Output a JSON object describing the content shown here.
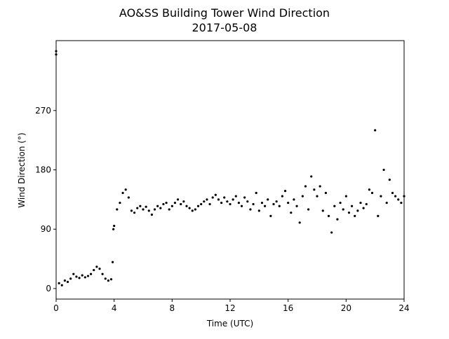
{
  "chart_data": {
    "type": "scatter",
    "title": "AO&SS Building Tower Wind Direction",
    "subtitle": "2017-05-08",
    "x_label": "Time (UTC)",
    "y_label": "Wind Direction (°)",
    "xlim": [
      0,
      24
    ],
    "xticks": [
      0,
      4,
      8,
      12,
      16,
      20,
      24
    ],
    "ylim": [
      -16,
      376
    ],
    "yticks": [
      0,
      90,
      180,
      270
    ],
    "x": [
      0,
      0,
      0.2,
      0.4,
      0.6,
      0.8,
      1.0,
      1.2,
      1.4,
      1.6,
      1.8,
      2.0,
      2.2,
      2.4,
      2.6,
      2.8,
      3.0,
      3.2,
      3.4,
      3.6,
      3.8,
      3.9,
      3.95,
      4.0,
      4.2,
      4.4,
      4.6,
      4.8,
      5.0,
      5.2,
      5.4,
      5.6,
      5.8,
      6.0,
      6.2,
      6.4,
      6.6,
      6.8,
      7.0,
      7.2,
      7.4,
      7.6,
      7.8,
      8.0,
      8.2,
      8.4,
      8.6,
      8.8,
      9.0,
      9.2,
      9.4,
      9.6,
      9.8,
      10.0,
      10.2,
      10.4,
      10.6,
      10.8,
      11.0,
      11.2,
      11.4,
      11.6,
      11.8,
      12.0,
      12.2,
      12.4,
      12.6,
      12.8,
      13.0,
      13.2,
      13.4,
      13.6,
      13.8,
      14.0,
      14.2,
      14.4,
      14.6,
      14.8,
      15.0,
      15.2,
      15.4,
      15.6,
      15.8,
      16.0,
      16.2,
      16.4,
      16.6,
      16.8,
      17.0,
      17.2,
      17.4,
      17.6,
      17.8,
      18.0,
      18.2,
      18.4,
      18.6,
      18.8,
      19.0,
      19.2,
      19.4,
      19.6,
      19.8,
      20.0,
      20.2,
      20.4,
      20.6,
      20.8,
      21.0,
      21.2,
      21.4,
      21.6,
      21.8,
      22.0,
      22.2,
      22.4,
      22.6,
      22.8,
      23.0,
      23.2,
      23.4,
      23.6,
      23.8,
      24.0
    ],
    "series": [
      {
        "color": "#000000",
        "values": [
          360,
          355,
          8,
          5,
          12,
          10,
          15,
          22,
          18,
          16,
          20,
          17,
          19,
          22,
          28,
          33,
          30,
          22,
          15,
          12,
          14,
          40,
          90,
          95,
          120,
          130,
          145,
          150,
          138,
          118,
          115,
          122,
          125,
          120,
          124,
          118,
          112,
          120,
          125,
          122,
          128,
          130,
          120,
          125,
          130,
          135,
          128,
          132,
          125,
          122,
          118,
          120,
          125,
          128,
          132,
          135,
          128,
          138,
          142,
          135,
          130,
          138,
          132,
          128,
          135,
          140,
          130,
          125,
          138,
          132,
          120,
          128,
          145,
          118,
          130,
          125,
          135,
          110,
          128,
          132,
          125,
          140,
          148,
          130,
          115,
          135,
          125,
          100,
          140,
          155,
          120,
          170,
          150,
          140,
          155,
          118,
          145,
          110,
          85,
          125,
          105,
          130,
          120,
          140,
          115,
          125,
          110,
          118,
          130,
          122,
          128,
          150,
          145,
          240,
          110,
          140,
          180,
          130,
          165,
          145,
          140,
          135,
          130,
          140
        ]
      }
    ]
  }
}
